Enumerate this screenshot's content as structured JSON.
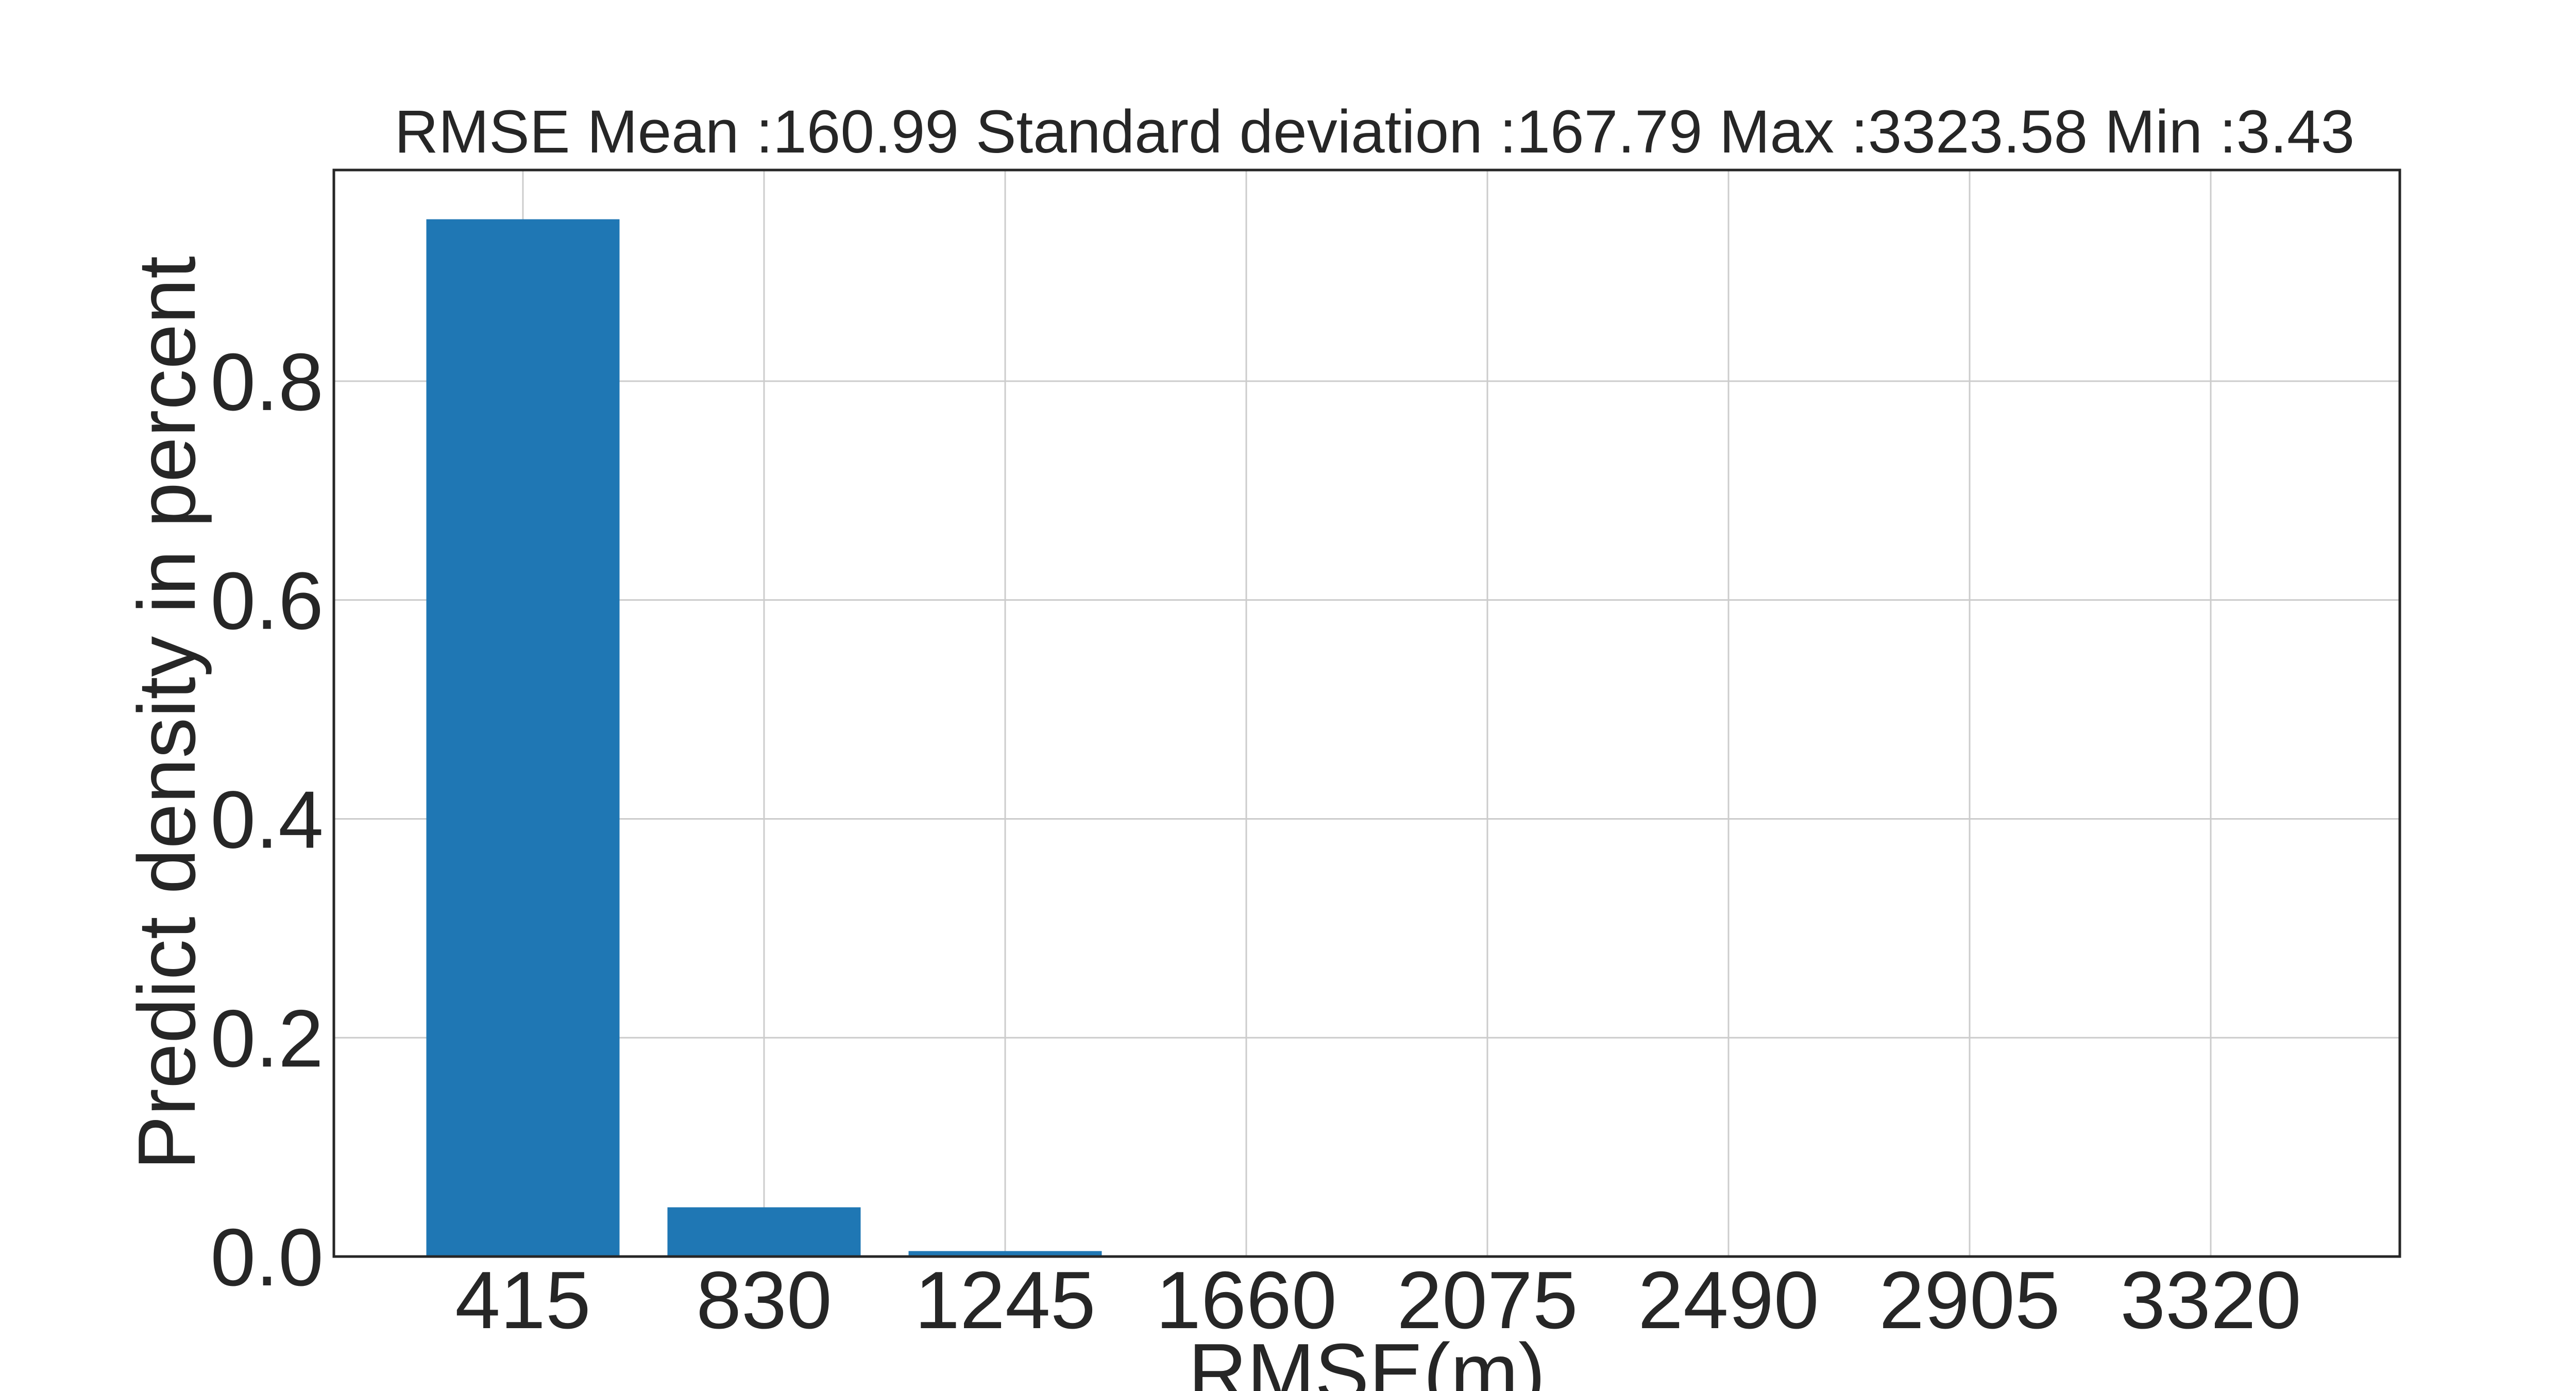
{
  "chart_data": {
    "type": "bar",
    "title": "RMSE Mean :160.99 Standard deviation :167.79 Max :3323.58 Min :3.43",
    "xlabel": "RMSE(m)",
    "ylabel": "Predict density in percent",
    "categories": [
      "415",
      "830",
      "1245",
      "1660",
      "2075",
      "2490",
      "2905",
      "3320"
    ],
    "values": [
      0.948,
      0.045,
      0.005,
      0.001,
      0.0,
      0.0,
      0.0,
      0.0
    ],
    "yticks": [
      "0.0",
      "0.2",
      "0.4",
      "0.6",
      "0.8"
    ],
    "ylim": [
      0,
      0.993
    ],
    "grid": true,
    "bar_color": "#1f77b4"
  }
}
